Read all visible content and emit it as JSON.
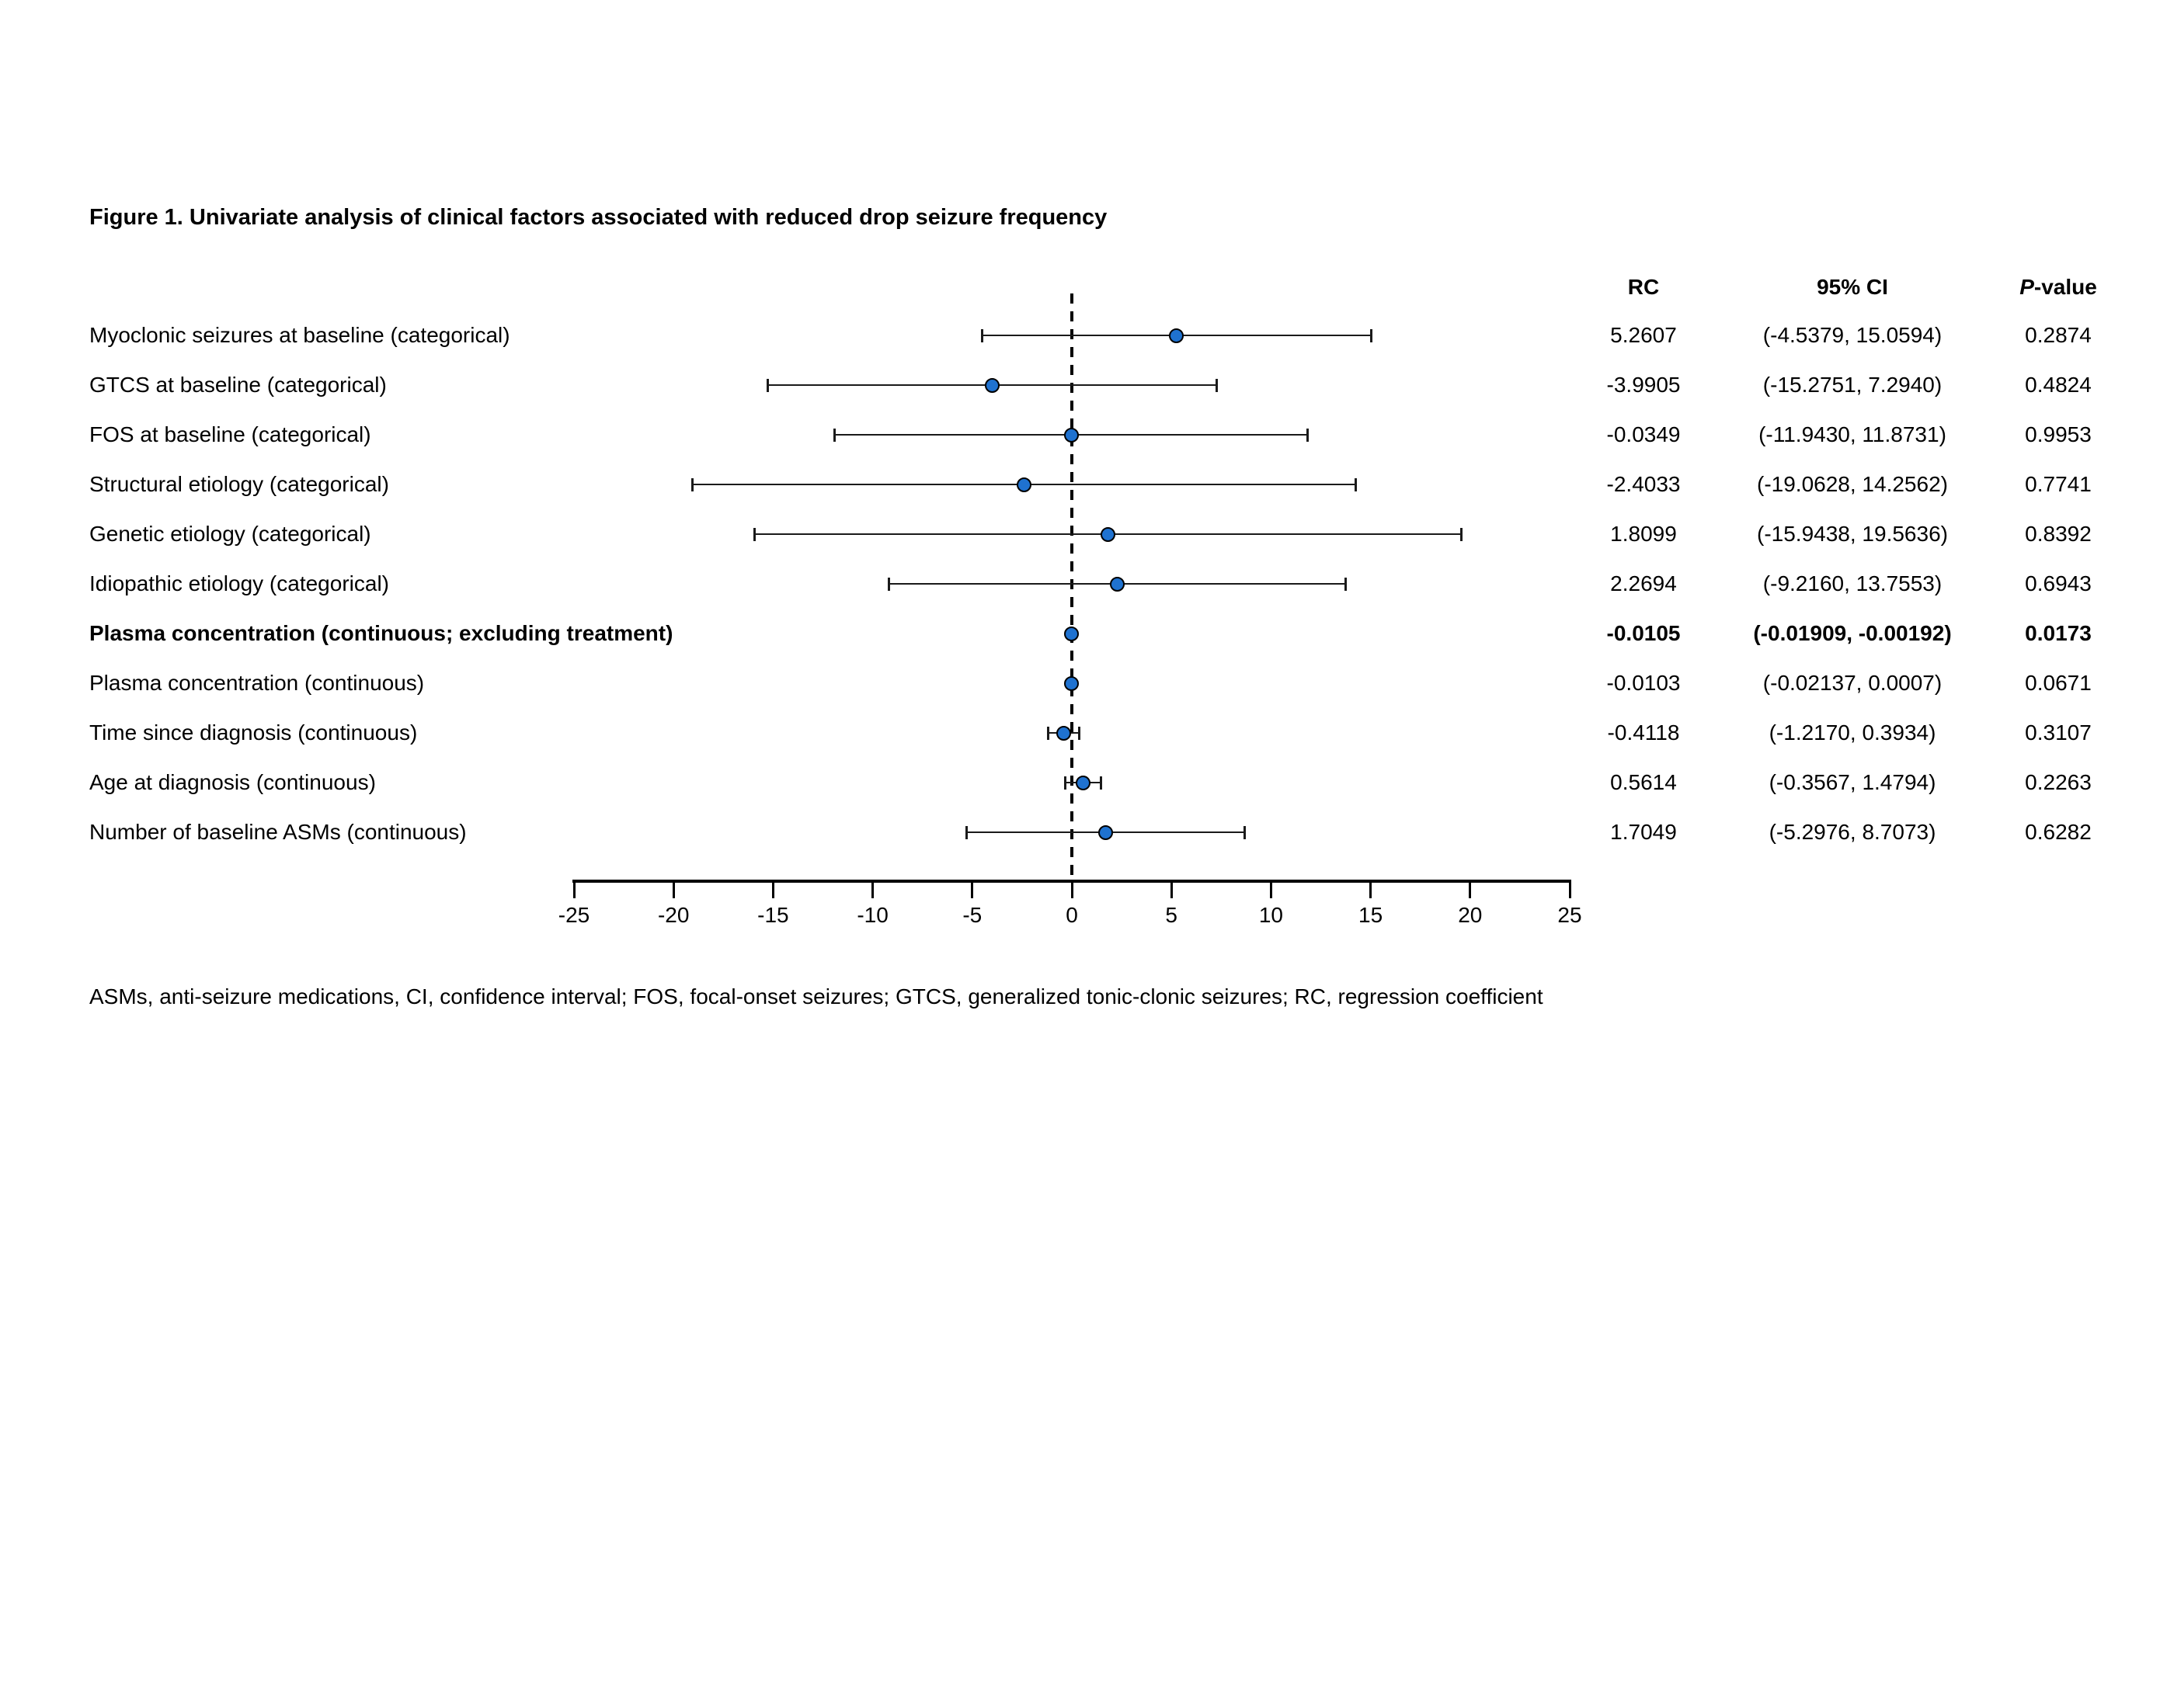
{
  "figure": {
    "title": "Figure 1. Univariate analysis of clinical factors associated with reduced drop seizure frequency",
    "footnote": "ASMs, anti-seizure medications, CI, confidence interval; FOS, focal-onset seizures; GTCS, generalized tonic-clonic seizures; RC, regression coefficient"
  },
  "columns": {
    "rc": "RC",
    "ci": "95% CI",
    "p_italic": "P",
    "p_rest": "-value"
  },
  "colors": {
    "marker_fill": "#1f72d0",
    "marker_edge": "#000000",
    "whisker": "#1a1a1a",
    "text": "#000000"
  },
  "chart_data": {
    "type": "forest",
    "title": "Figure 1. Univariate analysis of clinical factors associated with reduced drop seizure frequency",
    "xlabel": "",
    "ylabel": "",
    "xlim": [
      -25,
      25
    ],
    "xticks": [
      -25,
      -20,
      -15,
      -10,
      -5,
      0,
      5,
      10,
      15,
      20,
      25
    ],
    "xtick_labels": [
      "-25",
      "-20",
      "-15",
      "-10",
      "-5",
      "0",
      "5",
      "10",
      "15",
      "20",
      "25"
    ],
    "zero_reference_line": 0,
    "grid": false,
    "legend": false,
    "rows": [
      {
        "label": "Myoclonic seizures at baseline (categorical)",
        "rc": 5.2607,
        "ci_lo": -4.5379,
        "ci_hi": 15.0594,
        "p": 0.2874,
        "display": {
          "rc": "5.2607",
          "ci": "(-4.5379, 15.0594)",
          "p": "0.2874"
        },
        "bold": false
      },
      {
        "label": "GTCS at baseline (categorical)",
        "rc": -3.9905,
        "ci_lo": -15.2751,
        "ci_hi": 7.294,
        "p": 0.4824,
        "display": {
          "rc": "-3.9905",
          "ci": "(-15.2751, 7.2940)",
          "p": "0.4824"
        },
        "bold": false
      },
      {
        "label": "FOS at baseline (categorical)",
        "rc": -0.0349,
        "ci_lo": -11.943,
        "ci_hi": 11.8731,
        "p": 0.9953,
        "display": {
          "rc": "-0.0349",
          "ci": "(-11.9430, 11.8731)",
          "p": "0.9953"
        },
        "bold": false
      },
      {
        "label": "Structural etiology (categorical)",
        "rc": -2.4033,
        "ci_lo": -19.0628,
        "ci_hi": 14.2562,
        "p": 0.7741,
        "display": {
          "rc": "-2.4033",
          "ci": "(-19.0628, 14.2562)",
          "p": "0.7741"
        },
        "bold": false
      },
      {
        "label": "Genetic etiology (categorical)",
        "rc": 1.8099,
        "ci_lo": -15.9438,
        "ci_hi": 19.5636,
        "p": 0.8392,
        "display": {
          "rc": "1.8099",
          "ci": "(-15.9438, 19.5636)",
          "p": "0.8392"
        },
        "bold": false
      },
      {
        "label": "Idiopathic etiology (categorical)",
        "rc": 2.2694,
        "ci_lo": -9.216,
        "ci_hi": 13.7553,
        "p": 0.6943,
        "display": {
          "rc": "2.2694",
          "ci": "(-9.2160, 13.7553)",
          "p": "0.6943"
        },
        "bold": false
      },
      {
        "label": "Plasma concentration (continuous; excluding treatment)",
        "rc": -0.0105,
        "ci_lo": -0.01909,
        "ci_hi": -0.00192,
        "p": 0.0173,
        "display": {
          "rc": "-0.0105",
          "ci": "(-0.01909, -0.00192)",
          "p": "0.0173"
        },
        "bold": true
      },
      {
        "label": "Plasma concentration (continuous)",
        "rc": -0.0103,
        "ci_lo": -0.02137,
        "ci_hi": 0.0007,
        "p": 0.0671,
        "display": {
          "rc": "-0.0103",
          "ci": "(-0.02137, 0.0007)",
          "p": "0.0671"
        },
        "bold": false
      },
      {
        "label": "Time since diagnosis (continuous)",
        "rc": -0.4118,
        "ci_lo": -1.217,
        "ci_hi": 0.3934,
        "p": 0.3107,
        "display": {
          "rc": "-0.4118",
          "ci": "(-1.2170, 0.3934)",
          "p": "0.3107"
        },
        "bold": false
      },
      {
        "label": "Age at diagnosis (continuous)",
        "rc": 0.5614,
        "ci_lo": -0.3567,
        "ci_hi": 1.4794,
        "p": 0.2263,
        "display": {
          "rc": "0.5614",
          "ci": "(-0.3567, 1.4794)",
          "p": "0.2263"
        },
        "bold": false
      },
      {
        "label": "Number of baseline ASMs (continuous)",
        "rc": 1.7049,
        "ci_lo": -5.2976,
        "ci_hi": 8.7073,
        "p": 0.6282,
        "display": {
          "rc": "1.7049",
          "ci": "(-5.2976, 8.7073)",
          "p": "0.6282"
        },
        "bold": false
      }
    ]
  }
}
